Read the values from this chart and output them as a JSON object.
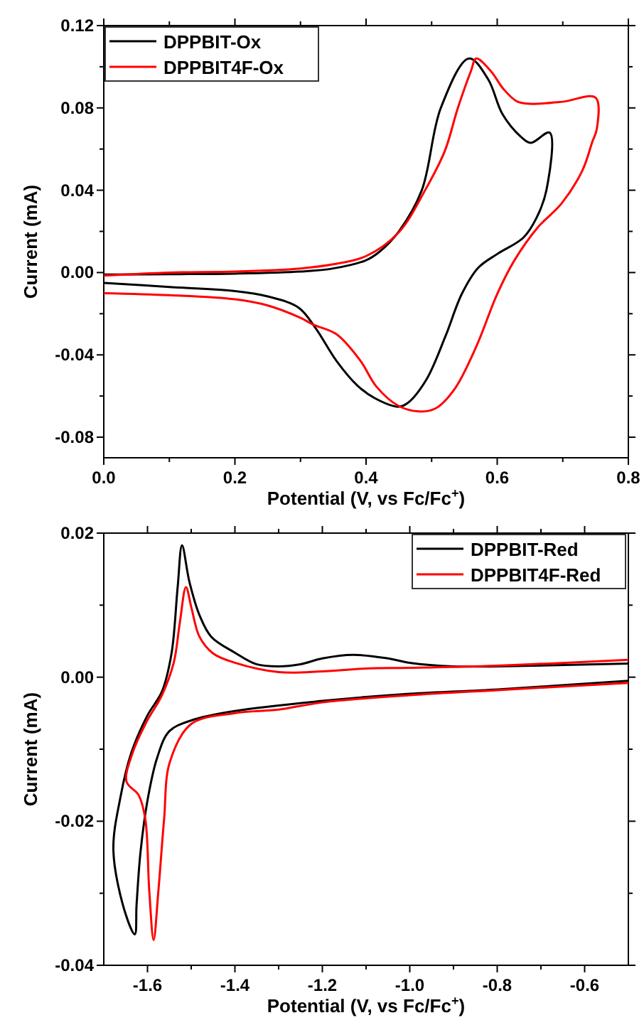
{
  "chart_data": [
    {
      "type": "line",
      "xlabel": "Potential (V, vs Fc/Fc$^{+}$)",
      "ylabel": "Current (mA)",
      "xlim": [
        0,
        0.8
      ],
      "ylim": [
        -0.09,
        0.12
      ],
      "xticks": [
        {
          "value": 0,
          "label": "0.0"
        },
        {
          "value": 0.1,
          "label": null
        },
        0.2,
        {
          "value": 0.3,
          "label": null
        },
        0.4,
        {
          "value": 0.5,
          "label": null
        },
        0.6,
        {
          "value": 0.7,
          "label": null
        },
        0.8
      ],
      "yticks": [
        {
          "value": -0.08,
          "label": "-0.08"
        },
        {
          "value": -0.06,
          "label": null
        },
        {
          "value": -0.04,
          "label": "-0.04"
        },
        {
          "value": -0.02,
          "label": null
        },
        {
          "value": 0,
          "label": "0.00"
        },
        {
          "value": 0.02,
          "label": null
        },
        {
          "value": 0.04,
          "label": "0.04"
        },
        {
          "value": 0.06,
          "label": null
        },
        {
          "value": 0.08,
          "label": "0.08"
        },
        {
          "value": 0.1,
          "label": null
        },
        {
          "value": 0.12,
          "label": "0.12"
        }
      ],
      "legend": "top left",
      "grid": false,
      "marker": "none",
      "line_style": "solid",
      "series": [
        {
          "name": "DPPBIT-Ox",
          "color": "#000000",
          "x": [
            0,
            0.1,
            0.2,
            0.3,
            0.35,
            0.4,
            0.42,
            0.45,
            0.485,
            0.514,
            0.557,
            0.586,
            0.608,
            0.636,
            0.651,
            0.68,
            0.675,
            0.66,
            0.64,
            0.6,
            0.571,
            0.546,
            0.521,
            0.492,
            0.463,
            0.449,
            0.413,
            0.387,
            0.355,
            0.323,
            0.297,
            0.25,
            0.2,
            0.1,
            0
          ],
          "values": [
            -0.001,
            -0.0008,
            -0.0005,
            0.0005,
            0.002,
            0.006,
            0.01,
            0.02,
            0.04,
            0.08,
            0.104,
            0.094,
            0.077,
            0.066,
            0.063,
            0.068,
            0.04,
            0.0266,
            0.017,
            0.009,
            0.0023,
            -0.0104,
            -0.031,
            -0.052,
            -0.0635,
            -0.0652,
            -0.061,
            -0.055,
            -0.043,
            -0.027,
            -0.017,
            -0.0116,
            -0.009,
            -0.007,
            -0.005
          ]
        },
        {
          "name": "DPPBIT4F-Ox",
          "color": "#ff0000",
          "x": [
            0,
            0.1,
            0.2,
            0.3,
            0.35,
            0.4,
            0.45,
            0.49,
            0.52,
            0.54,
            0.56,
            0.568,
            0.59,
            0.61,
            0.63,
            0.65,
            0.7,
            0.75,
            0.752,
            0.745,
            0.73,
            0.698,
            0.662,
            0.626,
            0.6,
            0.568,
            0.535,
            0.506,
            0.481,
            0.449,
            0.416,
            0.391,
            0.355,
            0.32,
            0.3,
            0.25,
            0.2,
            0.1,
            0
          ],
          "values": [
            -0.0015,
            0,
            0.0005,
            0.002,
            0.004,
            0.008,
            0.0196,
            0.04,
            0.059,
            0.08,
            0.098,
            0.104,
            0.098,
            0.089,
            0.0832,
            0.082,
            0.083,
            0.085,
            0.07,
            0.0635,
            0.0497,
            0.0335,
            0.022,
            0.0058,
            -0.0104,
            -0.036,
            -0.0566,
            -0.066,
            -0.0675,
            -0.0647,
            -0.0555,
            -0.0427,
            -0.03,
            -0.0254,
            -0.022,
            -0.016,
            -0.013,
            -0.011,
            -0.01
          ]
        }
      ]
    },
    {
      "type": "line",
      "xlabel": "Potential (V, vs Fc/Fc$^{+}$)",
      "ylabel": "Current (mA)",
      "xlim": [
        -1.7,
        -0.5
      ],
      "ylim": [
        -0.04,
        0.02
      ],
      "xticks": [
        -1.6,
        {
          "value": -1.5,
          "label": null
        },
        -1.4,
        {
          "value": -1.3,
          "label": null
        },
        -1.2,
        {
          "value": -1.1,
          "label": null
        },
        {
          "value": -1,
          "label": "-1.0"
        },
        {
          "value": -0.9,
          "label": null
        },
        -0.8,
        {
          "value": -0.7,
          "label": null
        },
        -0.6
      ],
      "yticks": [
        {
          "value": -0.04,
          "label": "-0.04"
        },
        {
          "value": -0.03,
          "label": null
        },
        {
          "value": -0.02,
          "label": "-0.02"
        },
        {
          "value": -0.01,
          "label": null
        },
        {
          "value": 0,
          "label": "0.00"
        },
        {
          "value": 0.01,
          "label": null
        },
        {
          "value": 0.02,
          "label": "0.02"
        }
      ],
      "legend": "top right",
      "grid": false,
      "marker": "none",
      "line_style": "solid",
      "series": [
        {
          "name": "DPPBIT-Red",
          "color": "#000000",
          "x": [
            -0.5,
            -0.8,
            -1.0,
            -1.2,
            -1.4,
            -1.5,
            -1.55,
            -1.578,
            -1.6,
            -1.616,
            -1.625,
            -1.629,
            -1.65,
            -1.678,
            -1.661,
            -1.637,
            -1.6,
            -1.567,
            -1.545,
            -1.531,
            -1.521,
            -1.504,
            -1.481,
            -1.454,
            -1.4,
            -1.351,
            -1.3,
            -1.25,
            -1.2,
            -1.129,
            -1.05,
            -1.0,
            -0.9,
            -0.8,
            -0.5
          ],
          "values": [
            -0.0005,
            -0.0017,
            -0.0023,
            -0.0033,
            -0.0047,
            -0.006,
            -0.0075,
            -0.0112,
            -0.0171,
            -0.0243,
            -0.0316,
            -0.0357,
            -0.0329,
            -0.0241,
            -0.0164,
            -0.0105,
            -0.0053,
            -0.002,
            0.0033,
            0.0125,
            0.0183,
            0.0132,
            0.0086,
            0.0056,
            0.0034,
            0.0018,
            0.0015,
            0.0018,
            0.0026,
            0.0031,
            0.0026,
            0.002,
            0.0015,
            0.0015,
            0.0019
          ]
        },
        {
          "name": "DPPBIT4F-Red",
          "color": "#ff0000",
          "x": [
            -0.5,
            -0.8,
            -1.0,
            -1.2,
            -1.3,
            -1.4,
            -1.5,
            -1.549,
            -1.562,
            -1.575,
            -1.586,
            -1.596,
            -1.605,
            -1.62,
            -1.648,
            -1.634,
            -1.603,
            -1.567,
            -1.54,
            -1.526,
            -1.512,
            -1.499,
            -1.481,
            -1.45,
            -1.4,
            -1.3,
            -1.2,
            -1.1,
            -1.0,
            -0.8,
            -0.5
          ],
          "values": [
            -0.0008,
            -0.0018,
            -0.0025,
            -0.0035,
            -0.0045,
            -0.005,
            -0.0065,
            -0.0118,
            -0.0197,
            -0.0296,
            -0.0365,
            -0.0296,
            -0.0197,
            -0.0164,
            -0.0145,
            -0.0105,
            -0.0063,
            -0.0025,
            0.002,
            0.0076,
            0.0125,
            0.0095,
            0.0056,
            0.0033,
            0.002,
            0.0007,
            0.0008,
            0.0012,
            0.0013,
            0.0016,
            0.0024
          ]
        }
      ]
    }
  ]
}
